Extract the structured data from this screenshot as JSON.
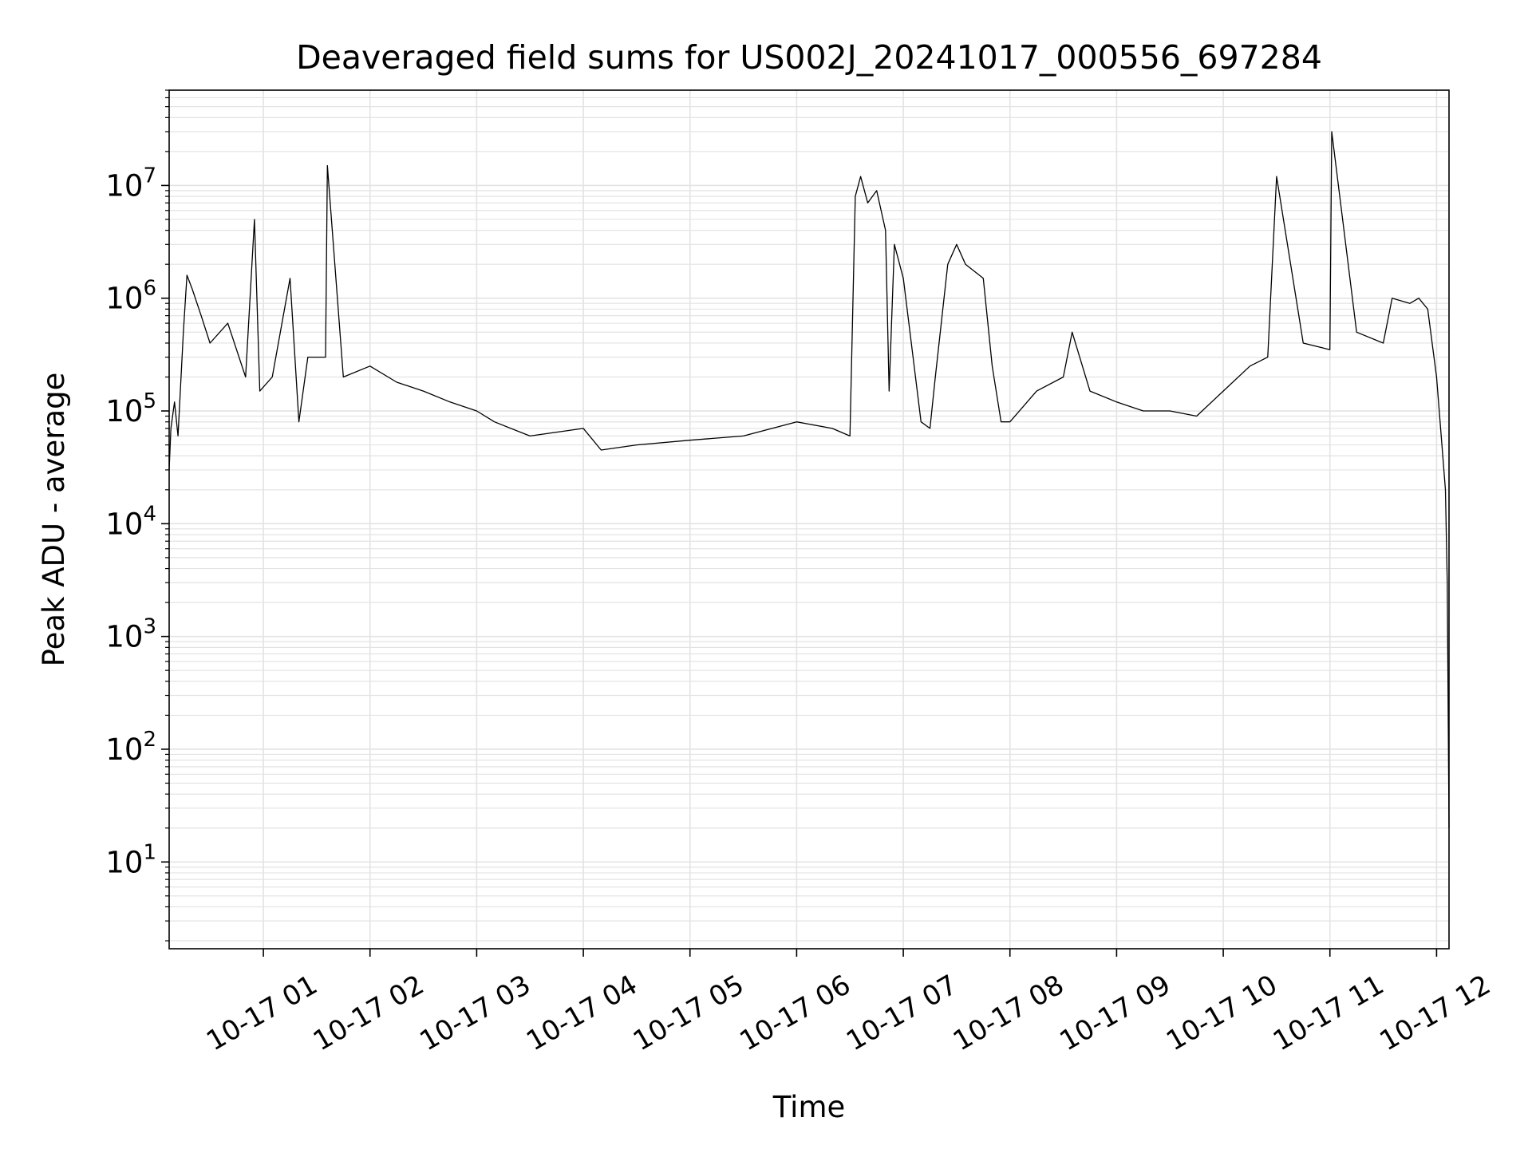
{
  "chart_data": {
    "type": "line",
    "title": "Deaveraged field sums for US002J_20241017_000556_697284",
    "xlabel": "Time",
    "ylabel": "Peak ADU - average",
    "yscale": "log",
    "ylim": [
      1.7,
      70000000
    ],
    "xlim": [
      "2024-10-17T00:07",
      "2024-10-17T12:07"
    ],
    "grid": true,
    "x_ticks": [
      {
        "t": "2024-10-17T01:00",
        "label": "10-17 01"
      },
      {
        "t": "2024-10-17T02:00",
        "label": "10-17 02"
      },
      {
        "t": "2024-10-17T03:00",
        "label": "10-17 03"
      },
      {
        "t": "2024-10-17T04:00",
        "label": "10-17 04"
      },
      {
        "t": "2024-10-17T05:00",
        "label": "10-17 05"
      },
      {
        "t": "2024-10-17T06:00",
        "label": "10-17 06"
      },
      {
        "t": "2024-10-17T07:00",
        "label": "10-17 07"
      },
      {
        "t": "2024-10-17T08:00",
        "label": "10-17 08"
      },
      {
        "t": "2024-10-17T09:00",
        "label": "10-17 09"
      },
      {
        "t": "2024-10-17T10:00",
        "label": "10-17 10"
      },
      {
        "t": "2024-10-17T11:00",
        "label": "10-17 11"
      },
      {
        "t": "2024-10-17T12:00",
        "label": "10-17 12"
      }
    ],
    "y_ticks": [
      {
        "value": 10,
        "base": "10",
        "exp": "1"
      },
      {
        "value": 100,
        "base": "10",
        "exp": "2"
      },
      {
        "value": 1000,
        "base": "10",
        "exp": "3"
      },
      {
        "value": 10000,
        "base": "10",
        "exp": "4"
      },
      {
        "value": 100000,
        "base": "10",
        "exp": "5"
      },
      {
        "value": 1000000,
        "base": "10",
        "exp": "6"
      },
      {
        "value": 10000000,
        "base": "10",
        "exp": "7"
      }
    ],
    "series": [
      {
        "color": "#000000",
        "x": [
          "2024-10-17T00:07",
          "2024-10-17T00:08",
          "2024-10-17T00:10",
          "2024-10-17T00:12",
          "2024-10-17T00:15",
          "2024-10-17T00:17",
          "2024-10-17T00:20",
          "2024-10-17T00:25",
          "2024-10-17T00:30",
          "2024-10-17T00:40",
          "2024-10-17T00:50",
          "2024-10-17T00:55",
          "2024-10-17T00:58",
          "2024-10-17T01:05",
          "2024-10-17T01:15",
          "2024-10-17T01:20",
          "2024-10-17T01:25",
          "2024-10-17T01:35",
          "2024-10-17T01:36",
          "2024-10-17T01:45",
          "2024-10-17T02:00",
          "2024-10-17T02:15",
          "2024-10-17T02:30",
          "2024-10-17T02:45",
          "2024-10-17T03:00",
          "2024-10-17T03:10",
          "2024-10-17T03:30",
          "2024-10-17T04:00",
          "2024-10-17T04:10",
          "2024-10-17T04:30",
          "2024-10-17T05:00",
          "2024-10-17T05:30",
          "2024-10-17T06:00",
          "2024-10-17T06:20",
          "2024-10-17T06:30",
          "2024-10-17T06:33",
          "2024-10-17T06:36",
          "2024-10-17T06:40",
          "2024-10-17T06:45",
          "2024-10-17T06:50",
          "2024-10-17T06:52",
          "2024-10-17T06:55",
          "2024-10-17T07:00",
          "2024-10-17T07:10",
          "2024-10-17T07:15",
          "2024-10-17T07:18",
          "2024-10-17T07:25",
          "2024-10-17T07:30",
          "2024-10-17T07:35",
          "2024-10-17T07:45",
          "2024-10-17T07:50",
          "2024-10-17T07:55",
          "2024-10-17T08:00",
          "2024-10-17T08:15",
          "2024-10-17T08:30",
          "2024-10-17T08:35",
          "2024-10-17T08:45",
          "2024-10-17T09:00",
          "2024-10-17T09:15",
          "2024-10-17T09:30",
          "2024-10-17T09:45",
          "2024-10-17T10:00",
          "2024-10-17T10:15",
          "2024-10-17T10:25",
          "2024-10-17T10:30",
          "2024-10-17T10:45",
          "2024-10-17T11:00",
          "2024-10-17T11:01",
          "2024-10-17T11:15",
          "2024-10-17T11:30",
          "2024-10-17T11:35",
          "2024-10-17T11:45",
          "2024-10-17T11:50",
          "2024-10-17T11:55",
          "2024-10-17T12:00",
          "2024-10-17T12:03",
          "2024-10-17T12:05",
          "2024-10-17T12:06",
          "2024-10-17T12:07"
        ],
        "y": [
          30000,
          70000,
          120000,
          60000,
          500000,
          1600000,
          1200000,
          700000,
          400000,
          600000,
          200000,
          5000000,
          150000,
          200000,
          1500000,
          80000,
          300000,
          300000,
          15000000,
          200000,
          250000,
          180000,
          150000,
          120000,
          100000,
          80000,
          60000,
          70000,
          45000,
          50000,
          55000,
          60000,
          80000,
          70000,
          60000,
          8000000,
          12000000,
          7000000,
          9000000,
          4000000,
          150000,
          3000000,
          1500000,
          80000,
          70000,
          200000,
          2000000,
          3000000,
          2000000,
          1500000,
          250000,
          80000,
          80000,
          150000,
          200000,
          500000,
          150000,
          120000,
          100000,
          100000,
          90000,
          150000,
          250000,
          300000,
          12000000,
          400000,
          350000,
          30000000,
          500000,
          400000,
          1000000,
          900000,
          1000000,
          800000,
          200000,
          50000,
          20000,
          3000,
          20
        ]
      }
    ]
  }
}
